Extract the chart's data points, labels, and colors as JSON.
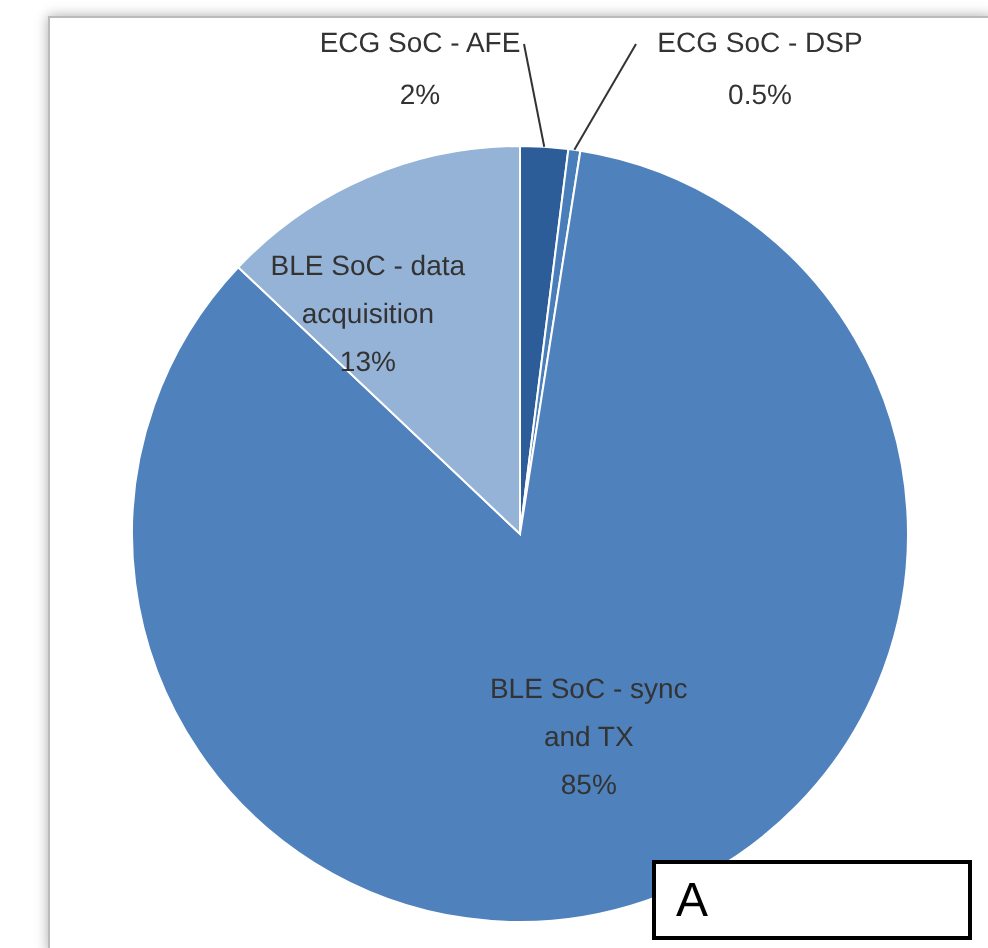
{
  "chart_data": {
    "type": "pie",
    "categories": [
      "ECG SoC - AFE",
      "ECG SoC - DSP",
      "BLE SoC - sync and TX",
      "BLE SoC - data acquisition"
    ],
    "values": [
      2,
      0.5,
      85,
      13
    ],
    "value_labels": [
      "2%",
      "0.5%",
      "85%",
      "13%"
    ],
    "colors": [
      "#2c5d98",
      "#4a7ebb",
      "#4f81bd",
      "#95b3d7"
    ],
    "annotations": [
      "A"
    ],
    "legend": false
  }
}
